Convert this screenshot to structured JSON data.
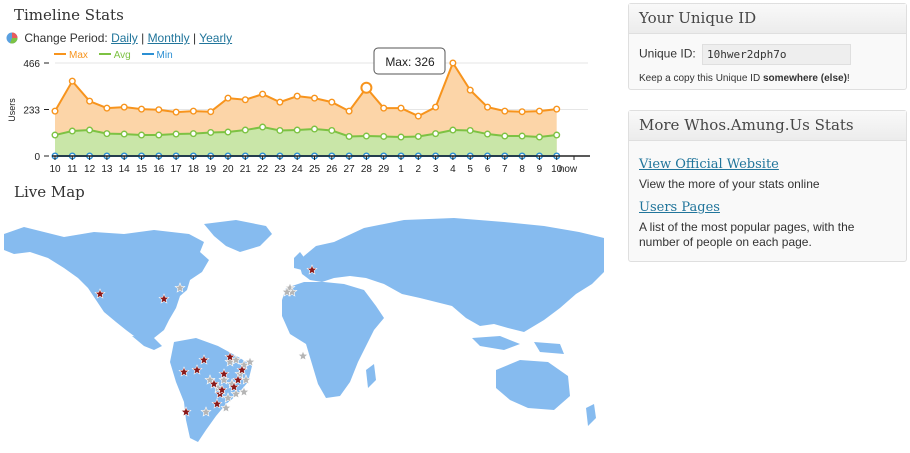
{
  "timeline": {
    "title": "Timeline Stats",
    "change_period_label": "Change Period:",
    "periods": [
      "Daily",
      "Monthly",
      "Yearly"
    ],
    "separator": "|",
    "legend": [
      {
        "name": "Max",
        "color": "#f7941d"
      },
      {
        "name": "Avg",
        "color": "#7dc243"
      },
      {
        "name": "Min",
        "color": "#2b8fd3"
      }
    ],
    "tooltip": "Max: 326"
  },
  "chart_data": {
    "type": "area",
    "ylabel": "Users",
    "yticks": [
      "466",
      "233",
      "0"
    ],
    "ylim": [
      0,
      466
    ],
    "categories": [
      "10",
      "11",
      "12",
      "13",
      "14",
      "15",
      "16",
      "17",
      "18",
      "19",
      "20",
      "21",
      "22",
      "23",
      "24",
      "25",
      "26",
      "27",
      "28",
      "29",
      "1",
      "2",
      "3",
      "4",
      "5",
      "6",
      "7",
      "8",
      "9",
      "10",
      "now"
    ],
    "series": [
      {
        "name": "Max",
        "color": "#f7941d",
        "values": [
          225,
          375,
          275,
          240,
          245,
          235,
          232,
          220,
          225,
          222,
          290,
          282,
          310,
          270,
          300,
          290,
          270,
          225,
          342,
          240,
          240,
          200,
          245,
          498,
          330,
          245,
          225,
          222,
          225,
          235,
          245
        ]
      },
      {
        "name": "Avg",
        "color": "#7dc243",
        "values": [
          105,
          125,
          130,
          112,
          110,
          105,
          105,
          110,
          112,
          118,
          120,
          130,
          145,
          128,
          130,
          135,
          128,
          98,
          100,
          98,
          95,
          98,
          112,
          130,
          128,
          110,
          100,
          100,
          95,
          105,
          115
        ]
      },
      {
        "name": "Min",
        "color": "#2b8fd3",
        "values": [
          0,
          0,
          0,
          0,
          0,
          0,
          0,
          0,
          0,
          0,
          0,
          0,
          0,
          0,
          0,
          0,
          0,
          0,
          0,
          0,
          0,
          0,
          0,
          0,
          0,
          0,
          0,
          0,
          0,
          0,
          0
        ]
      }
    ],
    "grid": true,
    "legend_position": "top-left"
  },
  "livemap": {
    "title": "Live Map",
    "land_color": "#86bbef",
    "marker_red": "#8b1a1a",
    "marker_grey": "#b5b5b5"
  },
  "unique_id": {
    "title": "Your Unique ID",
    "label": "Unique ID:",
    "value": "10hwer2dph7o",
    "note_prefix": "Keep a copy this Unique ID ",
    "note_bold": "somewhere (else)",
    "note_suffix": "!"
  },
  "more_stats": {
    "title": "More Whos.Amung.Us Stats",
    "links": [
      {
        "label": "View Official Website",
        "desc": "View the more of your stats online"
      },
      {
        "label": "Users Pages",
        "desc": "A list of the most popular pages, with the number of people on each page."
      }
    ]
  }
}
